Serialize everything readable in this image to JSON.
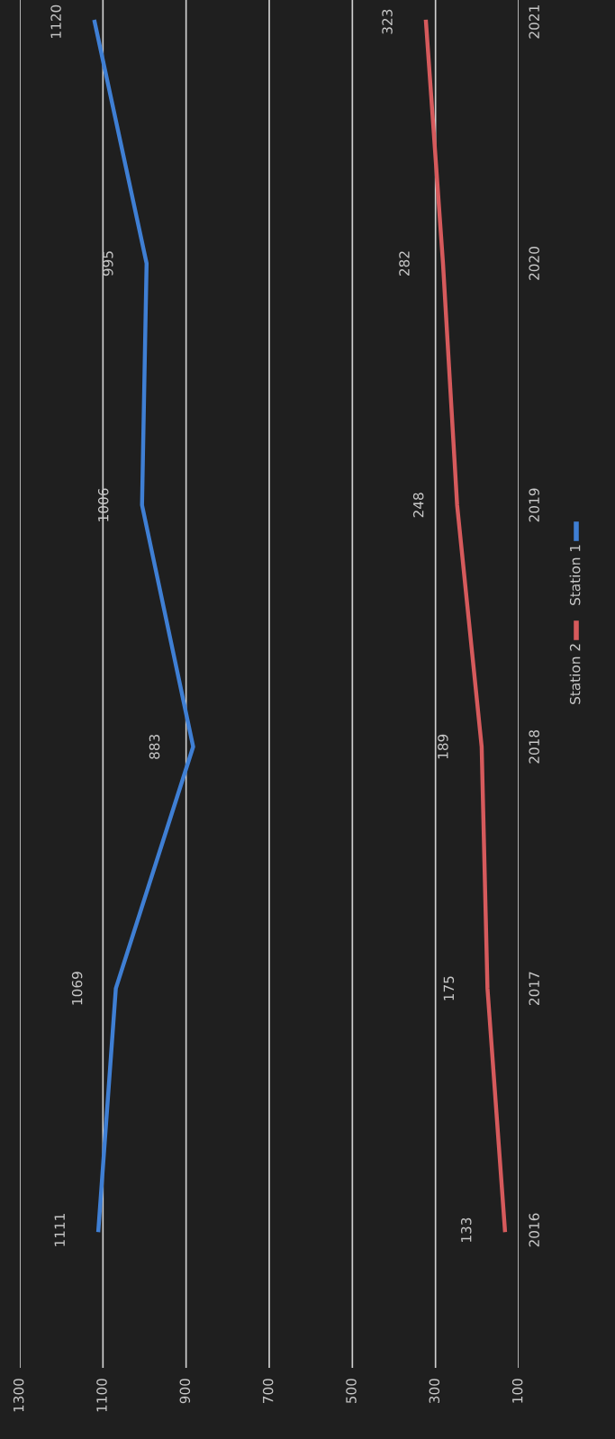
{
  "chart_data": {
    "type": "line",
    "orientation": "horizontal",
    "categories": [
      "2021",
      "2020",
      "2019",
      "2018",
      "2017",
      "2016"
    ],
    "series": [
      {
        "name": "Station 1",
        "color": "#3f7fd4",
        "values": [
          1120,
          995,
          1006,
          883,
          1069,
          1111
        ]
      },
      {
        "name": "Station 2",
        "color": "#d65a5c",
        "values": [
          323,
          282,
          248,
          189,
          175,
          133
        ]
      }
    ],
    "xlim": [
      1300,
      100
    ],
    "xticks": [
      1300,
      1100,
      900,
      700,
      500,
      300,
      100
    ],
    "grid": "x",
    "legend": "right",
    "data_labels": true,
    "marker": "none",
    "line_style": "solid"
  }
}
